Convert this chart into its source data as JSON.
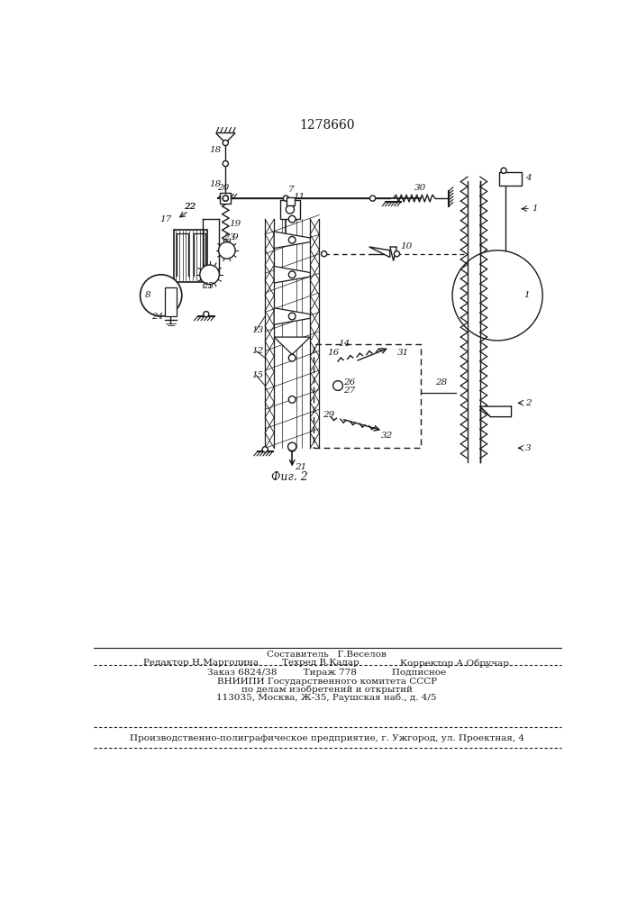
{
  "title": "1278660",
  "fig_label": "Фиг. 2",
  "bg_color": "#ffffff",
  "line_color": "#1a1a1a",
  "footer_row1_left": "Редактор Н.Марголина",
  "footer_row1_center": "Техред В.Кадар",
  "footer_row1_right": "Корректор А.Обручар",
  "footer_row0": "Составитель   Г.Веселов",
  "footer_row2": "Заказ 6824/38         Тираж 778            Подписное",
  "footer_row3": "ВНИИПИ Государственного комитета СССР",
  "footer_row4": "по делам изобретений и открытий",
  "footer_row5": "113035, Москва, Ж-35, Раушская наб., д. 4/5",
  "footer_row6": "Производственно-полиграфическое предприятие, г. Ужгород, ул. Проектная, 4"
}
